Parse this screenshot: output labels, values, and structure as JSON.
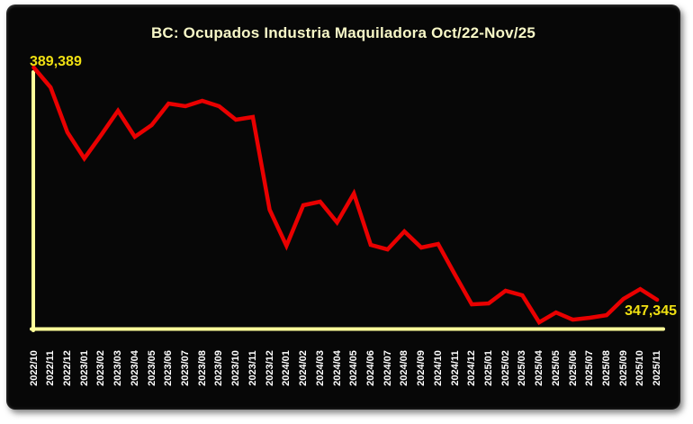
{
  "chart": {
    "title": "BC: Ocupados Industria Maquiladora Oct/22-Nov/25",
    "start_label": "389,389",
    "end_label": "347,345",
    "colors": {
      "page_bg": "#ffffff",
      "panel_bg": "#070707",
      "title": "#f8f8c8",
      "line": "#e90000",
      "axis": "#ffff99",
      "data_label": "#f0e012",
      "tick_label": "#ffffff"
    }
  },
  "chart_data": {
    "type": "line",
    "title": "BC: Ocupados Industria Maquiladora Oct/22-Nov/25",
    "xlabel": "",
    "ylabel": "",
    "legend": false,
    "grid": false,
    "ylim": [
      341000,
      391000
    ],
    "x": [
      "2022/10",
      "2022/11",
      "2022/12",
      "2023/01",
      "2023/02",
      "2023/03",
      "2023/04",
      "2023/05",
      "2023/06",
      "2023/07",
      "2023/08",
      "2023/09",
      "2023/10",
      "2023/11",
      "2023/12",
      "2024/01",
      "2024/02",
      "2024/03",
      "2024/04",
      "2024/05",
      "2024/06",
      "2024/07",
      "2024/08",
      "2024/09",
      "2024/10",
      "2024/11",
      "2024/12",
      "2025/01",
      "2025/02",
      "2025/03",
      "2025/04",
      "2025/05",
      "2025/06",
      "2025/07",
      "2025/08",
      "2025/09",
      "2025/10",
      "2025/11"
    ],
    "series": [
      {
        "name": "Ocupados Industria Maquiladora",
        "values": [
          389389,
          385800,
          377650,
          372930,
          377170,
          381570,
          376840,
          378960,
          382870,
          382380,
          383360,
          382380,
          379940,
          380420,
          363640,
          357120,
          364450,
          365100,
          361350,
          366570,
          357280,
          356460,
          359720,
          356790,
          357440,
          351900,
          346520,
          346680,
          348970,
          348150,
          343260,
          345050,
          343750,
          344080,
          344560,
          347500,
          349290,
          347345
        ]
      }
    ],
    "annotations": [
      {
        "x": "2022/10",
        "value": 389389,
        "label": "389,389"
      },
      {
        "x": "2025/11",
        "value": 347345,
        "label": "347,345"
      }
    ]
  }
}
